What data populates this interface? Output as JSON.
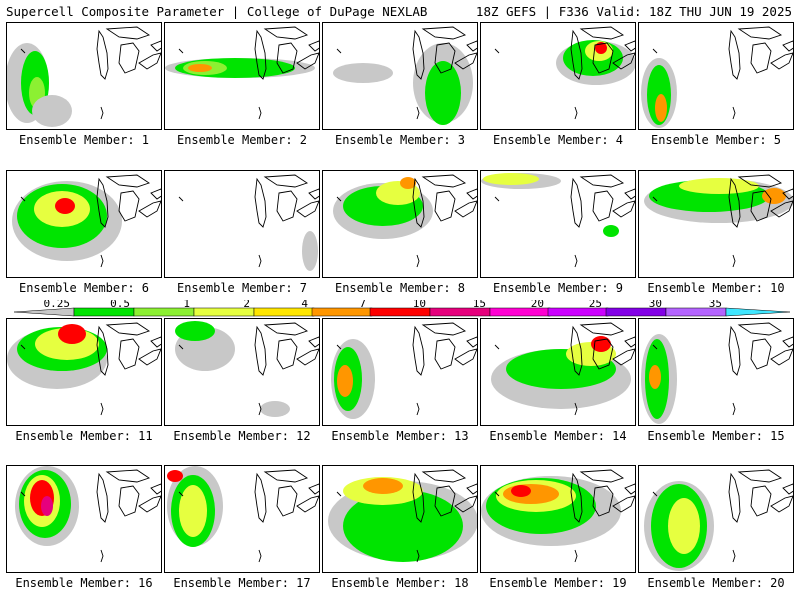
{
  "header": {
    "title": "Supercell Composite Parameter | College of DuPage NEXLAB",
    "valid": "18Z GEFS | F336 Valid: 18Z THU JUN 19 2025"
  },
  "legend": {
    "labels": [
      "0.25",
      "0.5",
      "1",
      "2",
      "4",
      "7",
      "10",
      "15",
      "20",
      "25",
      "30",
      "35"
    ],
    "colors": [
      "#c8c8c8",
      "#00e400",
      "#8cf032",
      "#e6ff40",
      "#ffe600",
      "#ff9600",
      "#ff0000",
      "#e6007d",
      "#ff00d2",
      "#cc00ff",
      "#8200e6",
      "#b464ff",
      "#40e6ff"
    ]
  },
  "member_label": "Ensemble Member:",
  "members": [
    {
      "n": "1",
      "patches": [
        [
          20,
          60,
          22,
          40,
          "#c8c8c8"
        ],
        [
          28,
          60,
          14,
          32,
          "#00e400"
        ],
        [
          30,
          70,
          8,
          16,
          "#8cf032"
        ],
        [
          45,
          88,
          20,
          16,
          "#c8c8c8"
        ]
      ]
    },
    {
      "n": "2",
      "patches": [
        [
          75,
          45,
          75,
          10,
          "#c8c8c8"
        ],
        [
          70,
          45,
          60,
          10,
          "#00e400"
        ],
        [
          40,
          45,
          22,
          7,
          "#8cf032"
        ],
        [
          35,
          45,
          12,
          4,
          "#ff9600"
        ]
      ]
    },
    {
      "n": "3",
      "patches": [
        [
          120,
          60,
          30,
          40,
          "#c8c8c8"
        ],
        [
          120,
          70,
          18,
          32,
          "#00e400"
        ],
        [
          40,
          50,
          30,
          10,
          "#c8c8c8"
        ]
      ]
    },
    {
      "n": "4",
      "patches": [
        [
          115,
          40,
          40,
          22,
          "#c8c8c8"
        ],
        [
          112,
          35,
          30,
          18,
          "#00e400"
        ],
        [
          118,
          28,
          14,
          10,
          "#e6ff40"
        ],
        [
          120,
          25,
          6,
          6,
          "#ff0000"
        ]
      ]
    },
    {
      "n": "5",
      "patches": [
        [
          20,
          70,
          18,
          35,
          "#c8c8c8"
        ],
        [
          20,
          72,
          12,
          30,
          "#00e400"
        ],
        [
          22,
          85,
          6,
          14,
          "#ff9600"
        ]
      ]
    },
    {
      "n": "6",
      "patches": [
        [
          60,
          50,
          55,
          40,
          "#c8c8c8"
        ],
        [
          55,
          45,
          45,
          32,
          "#00e400"
        ],
        [
          55,
          38,
          28,
          18,
          "#e6ff40"
        ],
        [
          58,
          35,
          10,
          8,
          "#ff0000"
        ]
      ]
    },
    {
      "n": "7",
      "patches": [
        [
          145,
          80,
          8,
          20,
          "#c8c8c8"
        ]
      ]
    },
    {
      "n": "8",
      "patches": [
        [
          60,
          40,
          50,
          28,
          "#c8c8c8"
        ],
        [
          60,
          35,
          40,
          20,
          "#00e400"
        ],
        [
          75,
          22,
          22,
          12,
          "#e6ff40"
        ],
        [
          85,
          12,
          8,
          6,
          "#ff9600"
        ]
      ]
    },
    {
      "n": "9",
      "patches": [
        [
          40,
          10,
          40,
          8,
          "#c8c8c8"
        ],
        [
          30,
          8,
          28,
          6,
          "#e6ff40"
        ],
        [
          130,
          60,
          8,
          6,
          "#00e400"
        ]
      ]
    },
    {
      "n": "10",
      "patches": [
        [
          80,
          30,
          75,
          22,
          "#c8c8c8"
        ],
        [
          70,
          25,
          60,
          16,
          "#00e400"
        ],
        [
          80,
          15,
          40,
          8,
          "#e6ff40"
        ],
        [
          135,
          25,
          12,
          8,
          "#ff9600"
        ]
      ]
    },
    {
      "n": "11",
      "patches": [
        [
          50,
          40,
          50,
          30,
          "#c8c8c8"
        ],
        [
          55,
          30,
          45,
          22,
          "#00e400"
        ],
        [
          60,
          25,
          32,
          16,
          "#e6ff40"
        ],
        [
          65,
          15,
          14,
          10,
          "#ff0000"
        ]
      ]
    },
    {
      "n": "12",
      "patches": [
        [
          40,
          30,
          30,
          22,
          "#c8c8c8"
        ],
        [
          30,
          12,
          20,
          10,
          "#00e400"
        ],
        [
          110,
          90,
          15,
          8,
          "#c8c8c8"
        ]
      ]
    },
    {
      "n": "13",
      "patches": [
        [
          30,
          60,
          22,
          40,
          "#c8c8c8"
        ],
        [
          25,
          60,
          14,
          32,
          "#00e400"
        ],
        [
          22,
          62,
          8,
          16,
          "#ff9600"
        ]
      ]
    },
    {
      "n": "14",
      "patches": [
        [
          80,
          60,
          70,
          30,
          "#c8c8c8"
        ],
        [
          80,
          50,
          55,
          20,
          "#00e400"
        ],
        [
          110,
          35,
          25,
          12,
          "#e6ff40"
        ],
        [
          120,
          25,
          10,
          8,
          "#ff0000"
        ]
      ]
    },
    {
      "n": "15",
      "patches": [
        [
          20,
          60,
          18,
          45,
          "#c8c8c8"
        ],
        [
          18,
          60,
          12,
          40,
          "#00e400"
        ],
        [
          16,
          58,
          6,
          12,
          "#ff9600"
        ]
      ]
    },
    {
      "n": "16",
      "patches": [
        [
          40,
          40,
          32,
          40,
          "#c8c8c8"
        ],
        [
          38,
          38,
          26,
          34,
          "#00e400"
        ],
        [
          35,
          35,
          18,
          26,
          "#e6ff40"
        ],
        [
          35,
          32,
          12,
          18,
          "#ff0000"
        ],
        [
          40,
          40,
          6,
          10,
          "#e6007d"
        ]
      ]
    },
    {
      "n": "17",
      "patches": [
        [
          30,
          40,
          28,
          40,
          "#c8c8c8"
        ],
        [
          28,
          45,
          22,
          36,
          "#00e400"
        ],
        [
          28,
          45,
          14,
          26,
          "#e6ff40"
        ],
        [
          10,
          10,
          8,
          6,
          "#ff0000"
        ]
      ]
    },
    {
      "n": "18",
      "patches": [
        [
          80,
          55,
          75,
          40,
          "#c8c8c8"
        ],
        [
          80,
          60,
          60,
          36,
          "#00e400"
        ],
        [
          60,
          25,
          40,
          14,
          "#e6ff40"
        ],
        [
          60,
          20,
          20,
          8,
          "#ff9600"
        ]
      ]
    },
    {
      "n": "19",
      "patches": [
        [
          70,
          45,
          70,
          35,
          "#c8c8c8"
        ],
        [
          60,
          40,
          55,
          28,
          "#00e400"
        ],
        [
          55,
          30,
          40,
          16,
          "#e6ff40"
        ],
        [
          50,
          28,
          28,
          10,
          "#ff9600"
        ],
        [
          40,
          25,
          10,
          6,
          "#ff0000"
        ]
      ]
    },
    {
      "n": "20",
      "patches": [
        [
          40,
          60,
          35,
          45,
          "#c8c8c8"
        ],
        [
          40,
          60,
          28,
          42,
          "#00e400"
        ],
        [
          45,
          60,
          16,
          28,
          "#e6ff40"
        ]
      ]
    }
  ]
}
